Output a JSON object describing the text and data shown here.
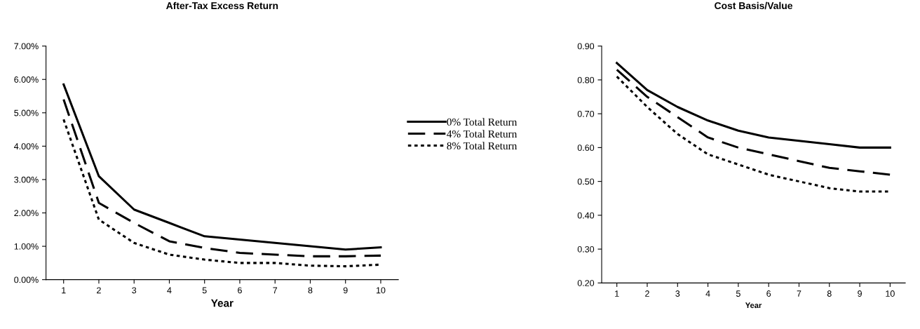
{
  "chart_data": [
    {
      "type": "line",
      "title": "After-Tax Excess Return",
      "xlabel": "Year",
      "categories": [
        "1",
        "2",
        "3",
        "4",
        "5",
        "6",
        "7",
        "8",
        "9",
        "10"
      ],
      "ylim": [
        0,
        7
      ],
      "yticks": [
        {
          "value": 0,
          "label": "0.00%"
        },
        {
          "value": 1,
          "label": "1.00%"
        },
        {
          "value": 2,
          "label": "2.00%"
        },
        {
          "value": 3,
          "label": "3.00%"
        },
        {
          "value": 4,
          "label": "4.00%"
        },
        {
          "value": 5,
          "label": "5.00%"
        },
        {
          "value": 6,
          "label": "6.00%"
        },
        {
          "value": 7,
          "label": "7.00%"
        }
      ],
      "grid": false,
      "legend": "right",
      "marker": "none",
      "series": [
        {
          "name": "0% Total Return",
          "color": "#000000",
          "line_style": "solid",
          "values": [
            5.85,
            3.1,
            2.1,
            1.7,
            1.3,
            1.2,
            1.1,
            1.0,
            0.9,
            0.97
          ]
        },
        {
          "name": "4% Total Return",
          "color": "#000000",
          "line_style": "dashed",
          "values": [
            5.4,
            2.3,
            1.7,
            1.15,
            0.95,
            0.8,
            0.75,
            0.7,
            0.7,
            0.72
          ]
        },
        {
          "name": "8% Total Return",
          "color": "#000000",
          "line_style": "dotted",
          "values": [
            4.8,
            1.8,
            1.1,
            0.75,
            0.6,
            0.5,
            0.5,
            0.42,
            0.4,
            0.45
          ]
        }
      ]
    },
    {
      "type": "line",
      "title": "Cost Basis/Value",
      "xlabel": "Year",
      "categories": [
        "1",
        "2",
        "3",
        "4",
        "5",
        "6",
        "7",
        "8",
        "9",
        "10"
      ],
      "ylim": [
        0.2,
        0.9
      ],
      "yticks": [
        {
          "value": 0.2,
          "label": "0.20"
        },
        {
          "value": 0.3,
          "label": "0.30"
        },
        {
          "value": 0.4,
          "label": "0.40"
        },
        {
          "value": 0.5,
          "label": "0.50"
        },
        {
          "value": 0.6,
          "label": "0.60"
        },
        {
          "value": 0.7,
          "label": "0.70"
        },
        {
          "value": 0.8,
          "label": "0.80"
        },
        {
          "value": 0.9,
          "label": "0.90"
        }
      ],
      "grid": false,
      "marker": "none",
      "series": [
        {
          "color": "#000000",
          "line_style": "solid",
          "values": [
            0.85,
            0.77,
            0.72,
            0.68,
            0.65,
            0.63,
            0.62,
            0.61,
            0.6,
            0.6
          ]
        },
        {
          "color": "#000000",
          "line_style": "dashed",
          "values": [
            0.83,
            0.75,
            0.69,
            0.63,
            0.6,
            0.58,
            0.56,
            0.54,
            0.53,
            0.52
          ]
        },
        {
          "color": "#000000",
          "line_style": "dotted",
          "values": [
            0.81,
            0.72,
            0.64,
            0.58,
            0.55,
            0.52,
            0.5,
            0.48,
            0.47,
            0.47
          ]
        }
      ]
    }
  ]
}
